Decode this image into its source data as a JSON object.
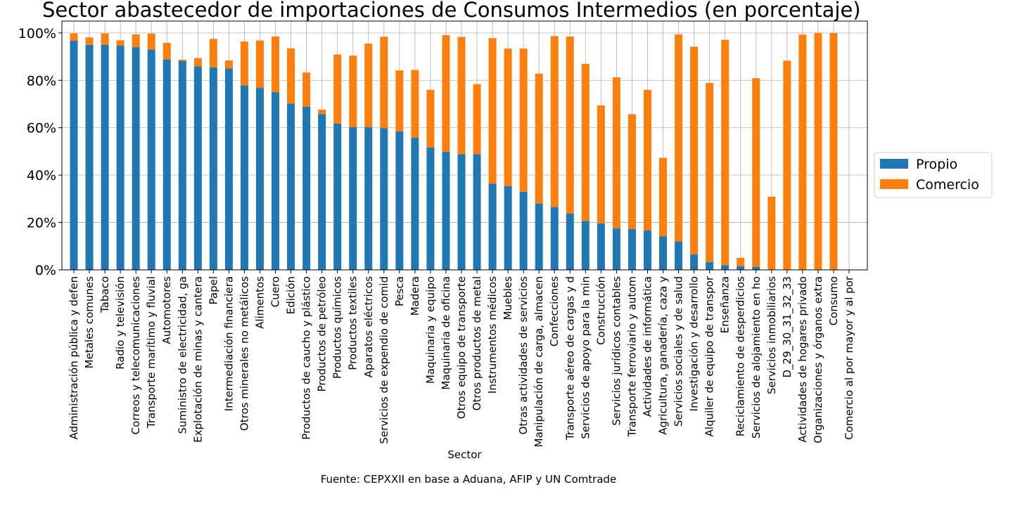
{
  "chart_data": {
    "type": "bar",
    "stacked": true,
    "title": "Sector abastecedor de importaciones de Consumos Intermedios (en porcentaje)",
    "xlabel": "Sector",
    "ylabel": "",
    "ylim": [
      0,
      105
    ],
    "yticks": [
      0,
      20,
      40,
      60,
      80,
      100
    ],
    "ytick_labels": [
      "0%",
      "20%",
      "40%",
      "60%",
      "80%",
      "100%"
    ],
    "grid": true,
    "legend_position": "right",
    "source": "Fuente: CEPXXII en base a Aduana, AFIP y UN Comtrade",
    "categories": [
      "Administración pública y defen",
      "Metales comunes",
      "Tabaco",
      "Radio y televisión",
      "Correos y telecomunicaciones",
      "Transporte marítimo y fluvial",
      "Automotores",
      "Suministro de electricidad, ga",
      "Explotación de minas y cantera",
      "Papel",
      "Intermediación financiera",
      "Otros minerales no metálicos",
      "Alimentos",
      "Cuero",
      "Edición",
      "Productos de caucho y plástico",
      "Productos de petróleo",
      "Productos químicos",
      "Productos textiles",
      "Aparatos eléctricos",
      "Servicios de expendio de comid",
      "Pesca",
      "Madera",
      "Maquinaria y equipo",
      "Maquinaria de oficina",
      "Otros equipo de transporte",
      "Otros productos de metal",
      "Instrumentos médicos",
      "Muebles",
      "Otras actividades de servicios",
      "Manipulación de carga, almacen",
      "Confecciones",
      "Transporte aéreo de cargas y d",
      "Servicios de apoyo para la min",
      "Construcción",
      "Servicios jurídicos contables",
      "Transporte ferroviario y autom",
      "Actividades de informática",
      "Agricultura, ganadería, caza y",
      "Servicios sociales y de salud",
      "Investigación y desarrollo",
      "Alquiler de equipo de transpor",
      "Enseñanza",
      "Reciclamiento de desperdicios",
      "Servicios de alojamiento en ho",
      "Servicios inmobiliarios",
      "D_29_30_31_32_33",
      "Actividades de hogares privado",
      "Organizaciones y órganos extra",
      "Consumo",
      "Comercio al por mayor y al por"
    ],
    "series": [
      {
        "name": "Propio",
        "color": "#1f77b4",
        "values": [
          96.8,
          95.0,
          95.0,
          94.6,
          94.0,
          93.0,
          88.8,
          88.2,
          85.9,
          85.5,
          85.0,
          77.8,
          76.8,
          75.0,
          70.2,
          68.9,
          65.8,
          61.7,
          60.2,
          60.2,
          59.8,
          58.4,
          55.8,
          51.7,
          49.8,
          48.8,
          48.8,
          36.4,
          35.3,
          33.0,
          28.0,
          26.5,
          23.8,
          20.7,
          19.6,
          17.6,
          17.3,
          16.6,
          14.2,
          12.0,
          6.5,
          3.3,
          2.0,
          1.5,
          1.3,
          0,
          0,
          0,
          0,
          0,
          0
        ]
      },
      {
        "name": "Comercio",
        "color": "#ff7f0e",
        "values": [
          3.0,
          3.1,
          4.8,
          2.3,
          5.4,
          6.7,
          7.0,
          0.5,
          3.5,
          12.0,
          3.4,
          18.6,
          20.0,
          23.5,
          23.3,
          14.4,
          1.8,
          29.2,
          30.2,
          35.3,
          38.6,
          25.8,
          28.6,
          24.3,
          49.3,
          49.5,
          29.6,
          61.4,
          58.1,
          60.4,
          54.8,
          72.2,
          74.7,
          66.2,
          49.8,
          63.7,
          48.4,
          59.4,
          33.1,
          87.4,
          87.7,
          75.6,
          95.1,
          3.6,
          79.6,
          30.9,
          88.3,
          99.3,
          100.0,
          100.0,
          0
        ]
      }
    ]
  }
}
